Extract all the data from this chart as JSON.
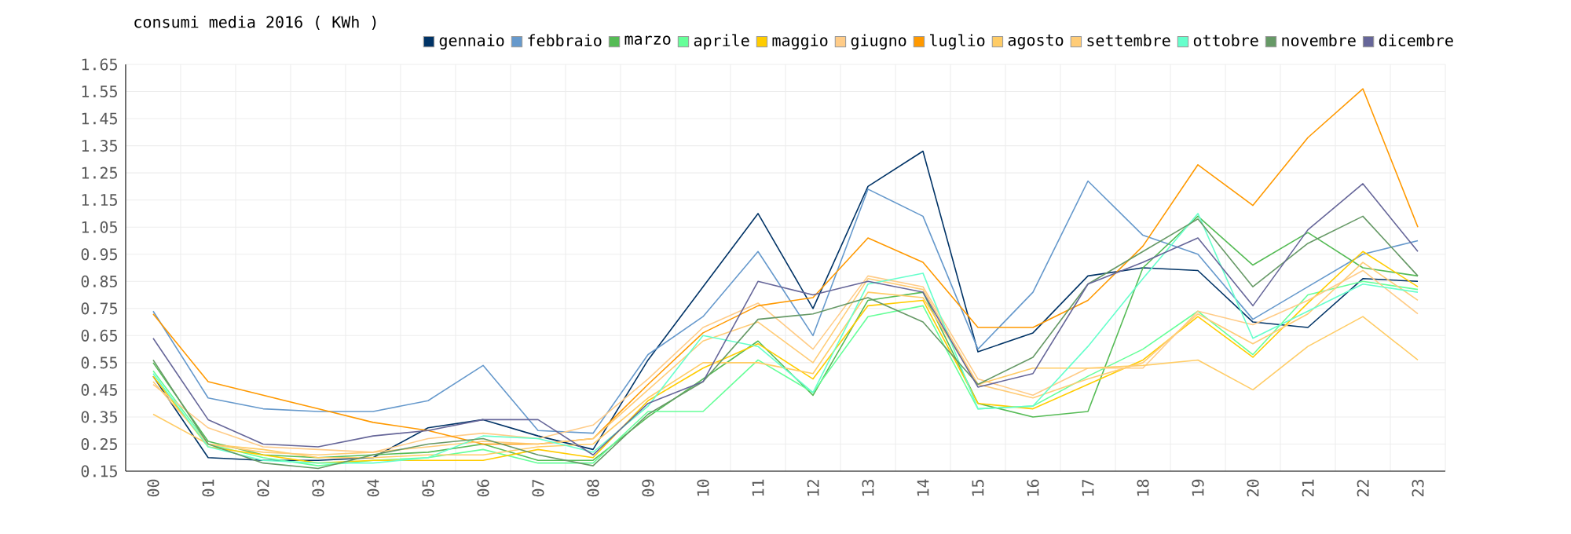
{
  "chart_data": {
    "type": "line",
    "title": "consumi media 2016 ( KWh )",
    "categories": [
      "00",
      "01",
      "02",
      "03",
      "04",
      "05",
      "06",
      "07",
      "08",
      "09",
      "10",
      "11",
      "12",
      "13",
      "14",
      "15",
      "16",
      "17",
      "18",
      "19",
      "20",
      "21",
      "22",
      "23"
    ],
    "series": [
      {
        "name": "gennaio",
        "color": "#003366",
        "values": [
          0.5,
          0.2,
          0.19,
          0.19,
          0.2,
          0.31,
          0.34,
          0.28,
          0.23,
          0.56,
          0.83,
          1.1,
          0.75,
          1.2,
          1.33,
          0.59,
          0.66,
          0.87,
          0.9,
          0.89,
          0.7,
          0.68,
          0.86,
          0.85
        ]
      },
      {
        "name": "febbraio",
        "color": "#6699cc",
        "values": [
          0.74,
          0.42,
          0.38,
          0.37,
          0.37,
          0.41,
          0.54,
          0.3,
          0.29,
          0.58,
          0.72,
          0.96,
          0.65,
          1.19,
          1.09,
          0.6,
          0.81,
          1.22,
          1.02,
          0.95,
          0.71,
          0.83,
          0.95,
          1.0
        ]
      },
      {
        "name": "marzo",
        "color": "#55bb55",
        "values": [
          0.55,
          0.26,
          0.21,
          0.2,
          0.21,
          0.22,
          0.25,
          0.19,
          0.19,
          0.35,
          0.49,
          0.63,
          0.43,
          0.78,
          0.81,
          0.4,
          0.35,
          0.37,
          0.9,
          1.09,
          0.91,
          1.03,
          0.9,
          0.87
        ]
      },
      {
        "name": "aprile",
        "color": "#66ff99",
        "values": [
          0.52,
          0.25,
          0.2,
          0.17,
          0.19,
          0.2,
          0.23,
          0.18,
          0.18,
          0.37,
          0.37,
          0.56,
          0.44,
          0.72,
          0.76,
          0.38,
          0.39,
          0.5,
          0.6,
          0.74,
          0.58,
          0.8,
          0.85,
          0.82
        ]
      },
      {
        "name": "maggio",
        "color": "#ffcc00",
        "values": [
          0.5,
          0.24,
          0.21,
          0.18,
          0.19,
          0.19,
          0.19,
          0.23,
          0.2,
          0.41,
          0.53,
          0.62,
          0.49,
          0.76,
          0.78,
          0.4,
          0.38,
          0.47,
          0.56,
          0.72,
          0.57,
          0.77,
          0.96,
          0.83
        ]
      },
      {
        "name": "giugno",
        "color": "#ffcc88",
        "values": [
          0.47,
          0.31,
          0.24,
          0.23,
          0.22,
          0.27,
          0.29,
          0.27,
          0.32,
          0.49,
          0.68,
          0.77,
          0.6,
          0.87,
          0.83,
          0.49,
          0.43,
          0.53,
          0.53,
          0.74,
          0.69,
          0.78,
          0.89,
          0.73
        ]
      },
      {
        "name": "luglio",
        "color": "#ff9900",
        "values": [
          0.73,
          0.48,
          0.43,
          0.38,
          0.33,
          0.3,
          0.25,
          0.25,
          0.27,
          0.47,
          0.66,
          0.76,
          0.79,
          1.01,
          0.92,
          0.68,
          0.68,
          0.78,
          0.98,
          1.28,
          1.13,
          1.38,
          1.56,
          1.05
        ]
      },
      {
        "name": "agosto",
        "color": "#ffcc66",
        "values": [
          0.36,
          0.25,
          0.23,
          0.2,
          0.2,
          0.21,
          0.21,
          0.24,
          0.25,
          0.42,
          0.55,
          0.55,
          0.51,
          0.81,
          0.79,
          0.47,
          0.53,
          0.53,
          0.54,
          0.56,
          0.45,
          0.61,
          0.72,
          0.56
        ]
      },
      {
        "name": "settembre",
        "color": "#ffcc77",
        "values": [
          0.48,
          0.25,
          0.22,
          0.21,
          0.22,
          0.24,
          0.26,
          0.25,
          0.27,
          0.45,
          0.63,
          0.7,
          0.55,
          0.86,
          0.82,
          0.47,
          0.42,
          0.49,
          0.55,
          0.73,
          0.62,
          0.73,
          0.92,
          0.78
        ]
      },
      {
        "name": "ottobre",
        "color": "#66ffcc",
        "values": [
          0.51,
          0.24,
          0.19,
          0.18,
          0.18,
          0.2,
          0.28,
          0.27,
          0.22,
          0.39,
          0.65,
          0.61,
          0.44,
          0.84,
          0.88,
          0.38,
          0.39,
          0.61,
          0.86,
          1.1,
          0.64,
          0.74,
          0.84,
          0.81
        ]
      },
      {
        "name": "novembre",
        "color": "#669966",
        "values": [
          0.56,
          0.25,
          0.18,
          0.16,
          0.21,
          0.25,
          0.27,
          0.21,
          0.17,
          0.36,
          0.48,
          0.71,
          0.73,
          0.79,
          0.7,
          0.47,
          0.57,
          0.84,
          0.96,
          1.08,
          0.83,
          0.99,
          1.09,
          0.87
        ]
      },
      {
        "name": "dicembre",
        "color": "#666699",
        "values": [
          0.64,
          0.34,
          0.25,
          0.24,
          0.28,
          0.3,
          0.34,
          0.34,
          0.21,
          0.4,
          0.48,
          0.85,
          0.8,
          0.85,
          0.81,
          0.46,
          0.51,
          0.84,
          0.92,
          1.01,
          0.76,
          1.04,
          1.21,
          0.96
        ]
      }
    ],
    "ylim": [
      0.15,
      1.65
    ],
    "yticks": [
      0.15,
      0.25,
      0.35,
      0.45,
      0.55,
      0.65,
      0.75,
      0.85,
      0.95,
      1.05,
      1.15,
      1.25,
      1.35,
      1.45,
      1.55,
      1.65
    ],
    "grid": true,
    "legend": "top"
  }
}
